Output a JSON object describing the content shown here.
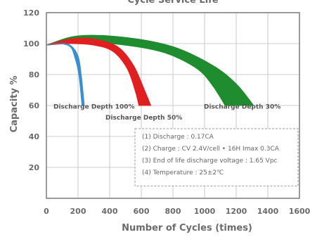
{
  "chart_data": {
    "type": "area",
    "title": "Cycle Service Life",
    "xlabel": "Number of Cycles (times)",
    "ylabel": "Capacity %",
    "xlim": [
      0,
      1600
    ],
    "ylim": [
      0,
      120
    ],
    "x_ticks": [
      0,
      200,
      400,
      600,
      800,
      1000,
      1200,
      1400,
      1600
    ],
    "y_ticks": [
      20,
      40,
      60,
      80,
      100,
      120
    ],
    "x_tick_labels": [
      "0",
      "200",
      "400",
      "600",
      "800",
      "1000",
      "1200",
      "1400",
      "1600"
    ],
    "y_tick_labels": [
      "20",
      "40",
      "60",
      "80",
      "100",
      "120"
    ],
    "grid": true,
    "series": [
      {
        "name": "Discharge Depth 100%",
        "color": "#3a8fd0",
        "upper": [
          [
            0,
            99
          ],
          [
            80,
            100
          ],
          [
            150,
            99
          ],
          [
            200,
            92
          ],
          [
            220,
            80
          ],
          [
            240,
            60
          ]
        ],
        "lower": [
          [
            0,
            99
          ],
          [
            80,
            100
          ],
          [
            150,
            98
          ],
          [
            180,
            91
          ],
          [
            205,
            80
          ],
          [
            225,
            60
          ]
        ]
      },
      {
        "name": "Discharge Depth 50%",
        "color": "#e02020",
        "upper": [
          [
            0,
            99
          ],
          [
            150,
            103
          ],
          [
            300,
            103
          ],
          [
            450,
            98
          ],
          [
            550,
            86
          ],
          [
            620,
            70
          ],
          [
            660,
            60
          ]
        ],
        "lower": [
          [
            0,
            99
          ],
          [
            150,
            100
          ],
          [
            300,
            99
          ],
          [
            420,
            95
          ],
          [
            510,
            84
          ],
          [
            560,
            70
          ],
          [
            585,
            60
          ]
        ]
      },
      {
        "name": "Discharge Depth 30%",
        "color": "#1e8c2f",
        "upper": [
          [
            0,
            99
          ],
          [
            200,
            105
          ],
          [
            500,
            104
          ],
          [
            800,
            98
          ],
          [
            1050,
            86
          ],
          [
            1200,
            74
          ],
          [
            1310,
            60
          ]
        ],
        "lower": [
          [
            0,
            99
          ],
          [
            200,
            101
          ],
          [
            500,
            99
          ],
          [
            750,
            94
          ],
          [
            950,
            84
          ],
          [
            1050,
            73
          ],
          [
            1130,
            60
          ]
        ]
      }
    ],
    "annotations": [
      "Discharge Depth 100%",
      "Discharge Depth 50%",
      "Discharge Depth 30%"
    ],
    "notes": [
      "(1) Discharge : 0.17CA",
      "(2) Charge : CV 2.4V/cell • 16H Imax 0.3CA",
      "(3) End of life discharge voltage : 1.65 Vpc",
      "(4) Temperature : 25±2℃"
    ]
  }
}
